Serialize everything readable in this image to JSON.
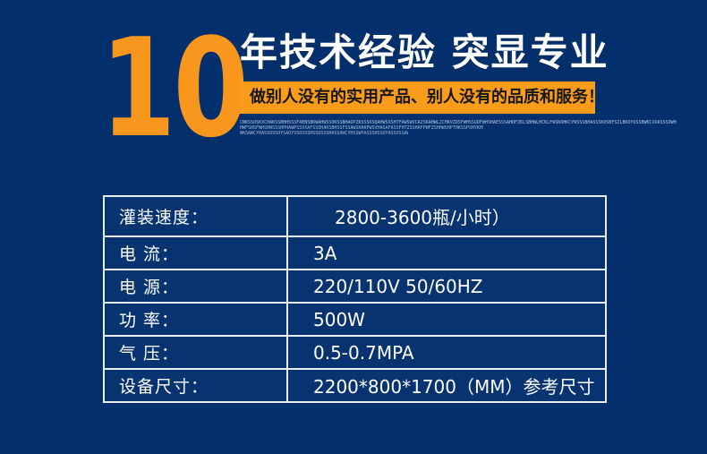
{
  "page": {
    "background_color": "#032f6c",
    "accent_color": "#f8961d"
  },
  "hero": {
    "years_number": "10",
    "title": "年技术经验 突显专业",
    "banner": "做别人没有的实用产品、别人没有的品质和服务！",
    "banner_bg_color": "#f89c1a",
    "fine_print": [
      "CNKSSOSKXCHAKSSBHHSSSFAENSBKWAHWSSOKSSBHAOPZKSSSKSQAHWSOSHTFAWSWVCAZSKAHWLZCHKVZDSFWHSSUDFWHSHAESSSAHDFZKLSBHWLHCKLFWSKOHKCYWSSSBHASSSKOSBFSZLBKOYUSSBWKCOUASSSOWHHSSOOSBFASSLWAFOHDCHWBAHKSSOSYWHSSBAFH",
      "HWFSHSFWHSHWSSSHPHAWPSSVXAFSSOHAKSBHSSFSSAWSKHAFWSVHASAFASSFHTZSSHAFPWFZSHHWSHPTHKSSPSHYKHSSBDSHWHASSZKAHASSDVHASPWSOYOJSWHHOHASSDKSO",
      "WKSAWCYHASSOSSOYSAOYSSOSSSHSSOSSSHASSAWCYHSSWYASSSHSSOYASSOSSAWSSASSOSSHWSSA"
    ]
  },
  "spec_table": {
    "border_color": "#e9eef6",
    "rows": [
      {
        "label": "灌装速度：",
        "value": "2800-3600瓶/小时）"
      },
      {
        "label": "电 流：",
        "value": "3A"
      },
      {
        "label": "电 源：",
        "value": "220/110V 50/60HZ"
      },
      {
        "label": "功 率：",
        "value": "500W"
      },
      {
        "label": "气 压：",
        "value": "0.5-0.7MPA"
      },
      {
        "label": "设备尺寸：",
        "value": "2200*800*1700（MM）参考尺寸"
      }
    ]
  }
}
